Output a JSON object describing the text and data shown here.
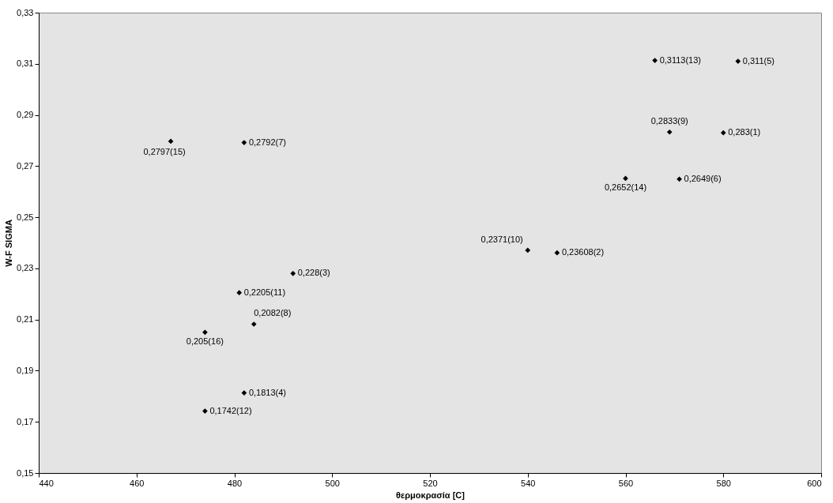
{
  "chart_data": {
    "type": "scatter",
    "xlabel": "θερμοκρασία [C]",
    "ylabel": "W-F SIGMA",
    "x": [
      467,
      482,
      492,
      481,
      484,
      474,
      482,
      474,
      540,
      546,
      560,
      571,
      569,
      580,
      566,
      583
    ],
    "series": [
      {
        "color": "#000000",
        "values": [
          0.2797,
          0.2792,
          0.228,
          0.2205,
          0.2082,
          0.205,
          0.1813,
          0.1742,
          0.2371,
          0.23608,
          0.2652,
          0.2649,
          0.2833,
          0.283,
          0.3113,
          0.311
        ],
        "value_labels": [
          "0,2797(15)",
          "0,2792(7)",
          "0,228(3)",
          "0,2205(11)",
          "0,2082(8)",
          "0,205(16)",
          "0,1813(4)",
          "0,1742(12)",
          "0,2371(10)",
          "0,23608(2)",
          "0,2652(14)",
          "0,2649(6)",
          "0,2833(9)",
          "0,283(1)",
          "0,3113(13)",
          "0,311(5)"
        ]
      }
    ],
    "xlim": [
      440,
      600
    ],
    "xticks": [
      440,
      460,
      480,
      500,
      520,
      540,
      560,
      580,
      600
    ],
    "ylim": [
      0.15,
      0.33
    ],
    "yticks": [
      {
        "value": 0.15,
        "label": "0,15"
      },
      {
        "value": 0.17,
        "label": "0,17"
      },
      {
        "value": 0.19,
        "label": "0,19"
      },
      {
        "value": 0.21,
        "label": "0,21"
      },
      {
        "value": 0.23,
        "label": "0,23"
      },
      {
        "value": 0.25,
        "label": "0,25"
      },
      {
        "value": 0.27,
        "label": "0,27"
      },
      {
        "value": 0.29,
        "label": "0,29"
      },
      {
        "value": 0.31,
        "label": "0,31"
      },
      {
        "value": 0.33,
        "label": "0,33"
      }
    ],
    "marker": "diamond"
  }
}
